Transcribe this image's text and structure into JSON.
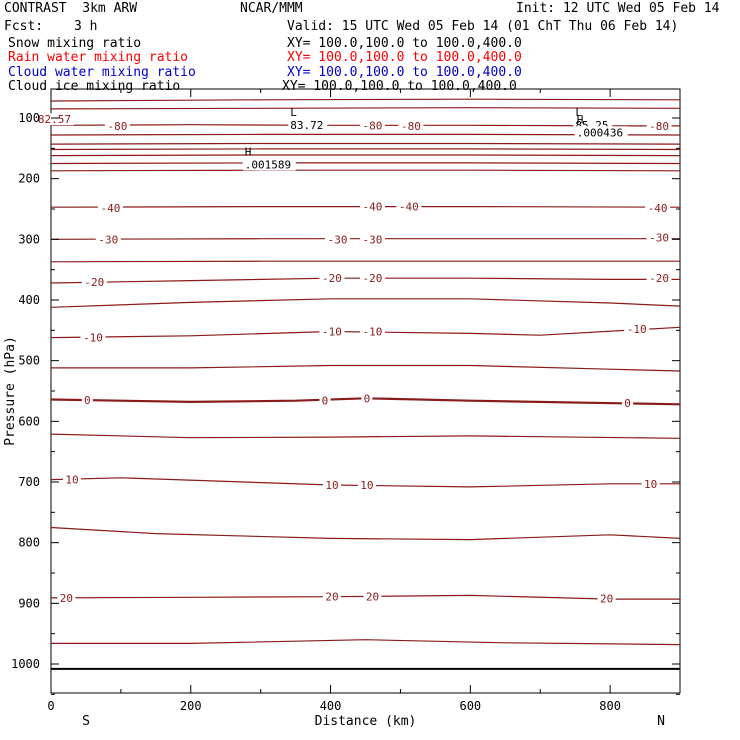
{
  "header": {
    "experiment": "CONTRAST  3km ARW",
    "forecast_label": "Fcst:",
    "forecast_value": "3 h",
    "center": "NCAR/MMM",
    "init": "Init: 12 UTC Wed 05 Feb 14",
    "valid": "Valid: 15 UTC Wed 05 Feb 14 (01 ChT Thu 06 Feb 14)"
  },
  "legend": [
    {
      "label": "Snow mixing ratio",
      "xy": "XY= 100.0,100.0 to 100.0,400.0",
      "color": "#000000"
    },
    {
      "label": "Rain water mixing ratio",
      "xy": "XY= 100.0,100.0 to 100.0,400.0",
      "color": "#ff0000"
    },
    {
      "label": "Cloud water mixing ratio",
      "xy": "XY= 100.0,100.0 to 100.0,400.0",
      "color": "#0000cc"
    },
    {
      "label": "Cloud ice mixing ratio",
      "xy": "XY= 100.0,100.0 to 100.0,400.0",
      "color": "#000000"
    }
  ],
  "chart_data": {
    "type": "contour",
    "xlabel": "Distance (km)",
    "ylabel": "Pressure (hPa)",
    "xlim": [
      0,
      900
    ],
    "ylim": [
      1050,
      62
    ],
    "x_ticks": [
      0,
      200,
      400,
      600,
      800
    ],
    "y_ticks": [
      100,
      200,
      300,
      400,
      500,
      600,
      700,
      800,
      900,
      1000
    ],
    "x_end_labels": {
      "left": "S",
      "right": "N"
    },
    "contour_color": "#8b1a1a",
    "surface_line_pressure": 1008,
    "extrema": [
      {
        "type": "L",
        "x": 348,
        "p": 100,
        "value": "83.72"
      },
      {
        "type": "H",
        "x": 283,
        "p": 165,
        "value": ".001589"
      },
      {
        "type": "L",
        "x": 756,
        "p": 100,
        "value": "85.25"
      },
      {
        "type": "H",
        "x": 758,
        "p": 112,
        "value": ".000436"
      }
    ],
    "isotherms": [
      {
        "label": "",
        "points": [
          [
            0,
            72
          ],
          [
            300,
            70
          ],
          [
            600,
            69
          ],
          [
            900,
            70
          ]
        ]
      },
      {
        "label": "",
        "points": [
          [
            0,
            85
          ],
          [
            300,
            84
          ],
          [
            600,
            83
          ],
          [
            900,
            84
          ]
        ]
      },
      {
        "label": "-80",
        "points": [
          [
            0,
            112
          ],
          [
            200,
            111
          ],
          [
            400,
            112
          ],
          [
            600,
            112
          ],
          [
            800,
            113
          ],
          [
            900,
            113
          ]
        ]
      },
      {
        "label": "",
        "points": [
          [
            0,
            128
          ],
          [
            300,
            127
          ],
          [
            600,
            127
          ],
          [
            900,
            128
          ]
        ]
      },
      {
        "label": "",
        "points": [
          [
            0,
            143
          ],
          [
            300,
            142
          ],
          [
            600,
            142
          ],
          [
            900,
            143
          ]
        ]
      },
      {
        "label": "",
        "points": [
          [
            0,
            152
          ],
          [
            300,
            151
          ],
          [
            600,
            151
          ],
          [
            900,
            152
          ]
        ]
      },
      {
        "label": "",
        "points": [
          [
            0,
            162
          ],
          [
            300,
            161
          ],
          [
            600,
            161
          ],
          [
            900,
            162
          ]
        ]
      },
      {
        "label": "",
        "points": [
          [
            0,
            175
          ],
          [
            300,
            174
          ],
          [
            600,
            174
          ],
          [
            900,
            175
          ]
        ]
      },
      {
        "label": "",
        "points": [
          [
            0,
            187
          ],
          [
            300,
            186
          ],
          [
            600,
            186
          ],
          [
            900,
            187
          ]
        ]
      },
      {
        "label": "-40",
        "points": [
          [
            0,
            247
          ],
          [
            300,
            246
          ],
          [
            600,
            246
          ],
          [
            900,
            247
          ]
        ]
      },
      {
        "label": "-30",
        "points": [
          [
            0,
            300
          ],
          [
            300,
            299
          ],
          [
            600,
            299
          ],
          [
            900,
            299
          ]
        ]
      },
      {
        "label": "",
        "points": [
          [
            0,
            337
          ],
          [
            300,
            336
          ],
          [
            600,
            336
          ],
          [
            900,
            336
          ]
        ]
      },
      {
        "label": "-20",
        "points": [
          [
            0,
            372
          ],
          [
            200,
            368
          ],
          [
            400,
            364
          ],
          [
            600,
            364
          ],
          [
            800,
            366
          ],
          [
            900,
            366
          ]
        ]
      },
      {
        "label": "",
        "points": [
          [
            0,
            412
          ],
          [
            200,
            404
          ],
          [
            400,
            398
          ],
          [
            600,
            398
          ],
          [
            800,
            405
          ],
          [
            900,
            410
          ]
        ]
      },
      {
        "label": "-10",
        "points": [
          [
            0,
            462
          ],
          [
            200,
            459
          ],
          [
            400,
            452
          ],
          [
            600,
            455
          ],
          [
            700,
            458
          ],
          [
            900,
            445
          ]
        ]
      },
      {
        "label": "",
        "points": [
          [
            0,
            512
          ],
          [
            200,
            512
          ],
          [
            400,
            508
          ],
          [
            600,
            508
          ],
          [
            800,
            514
          ],
          [
            900,
            517
          ]
        ]
      },
      {
        "label": "0",
        "points": [
          [
            0,
            564
          ],
          [
            200,
            568
          ],
          [
            350,
            566
          ],
          [
            450,
            562
          ],
          [
            600,
            566
          ],
          [
            900,
            572
          ]
        ]
      },
      {
        "label": "",
        "points": [
          [
            0,
            621
          ],
          [
            200,
            627
          ],
          [
            400,
            626
          ],
          [
            600,
            624
          ],
          [
            900,
            628
          ]
        ]
      },
      {
        "label": "10",
        "points": [
          [
            0,
            696
          ],
          [
            100,
            693
          ],
          [
            250,
            699
          ],
          [
            400,
            705
          ],
          [
            600,
            708
          ],
          [
            800,
            703
          ],
          [
            900,
            703
          ]
        ]
      },
      {
        "label": "",
        "points": [
          [
            0,
            775
          ],
          [
            150,
            785
          ],
          [
            400,
            793
          ],
          [
            600,
            795
          ],
          [
            800,
            787
          ],
          [
            900,
            793
          ]
        ]
      },
      {
        "label": "20",
        "points": [
          [
            0,
            891
          ],
          [
            200,
            890
          ],
          [
            400,
            889
          ],
          [
            600,
            887
          ],
          [
            800,
            893
          ],
          [
            900,
            893
          ]
        ]
      },
      {
        "label": "",
        "points": [
          [
            0,
            966
          ],
          [
            200,
            966
          ],
          [
            450,
            960
          ],
          [
            650,
            965
          ],
          [
            900,
            968
          ]
        ]
      }
    ],
    "contour_labels": [
      {
        "text": "82.57",
        "x": 5,
        "p": 102
      },
      {
        "text": "-80",
        "x": 95,
        "p": 113
      },
      {
        "text": "-80",
        "x": 460,
        "p": 112
      },
      {
        "text": "-80",
        "x": 515,
        "p": 113
      },
      {
        "text": "-80",
        "x": 870,
        "p": 113
      },
      {
        "text": "-40",
        "x": 85,
        "p": 248
      },
      {
        "text": "-40",
        "x": 460,
        "p": 246
      },
      {
        "text": "-40",
        "x": 512,
        "p": 246
      },
      {
        "text": "-40",
        "x": 868,
        "p": 248
      },
      {
        "text": "-30",
        "x": 82,
        "p": 300
      },
      {
        "text": "-30",
        "x": 410,
        "p": 300
      },
      {
        "text": "-30",
        "x": 460,
        "p": 300
      },
      {
        "text": "-30",
        "x": 870,
        "p": 297
      },
      {
        "text": "-20",
        "x": 62,
        "p": 370
      },
      {
        "text": "-20",
        "x": 402,
        "p": 364
      },
      {
        "text": "-20",
        "x": 460,
        "p": 364
      },
      {
        "text": "-20",
        "x": 870,
        "p": 364
      },
      {
        "text": "-10",
        "x": 60,
        "p": 462
      },
      {
        "text": "-10",
        "x": 402,
        "p": 452
      },
      {
        "text": "-10",
        "x": 460,
        "p": 452
      },
      {
        "text": "-10",
        "x": 838,
        "p": 448
      },
      {
        "text": "0",
        "x": 52,
        "p": 565
      },
      {
        "text": "0",
        "x": 392,
        "p": 566
      },
      {
        "text": "0",
        "x": 452,
        "p": 562
      },
      {
        "text": "0",
        "x": 825,
        "p": 570
      },
      {
        "text": "10",
        "x": 30,
        "p": 696
      },
      {
        "text": "10",
        "x": 402,
        "p": 705
      },
      {
        "text": "10",
        "x": 452,
        "p": 705
      },
      {
        "text": "10",
        "x": 858,
        "p": 703
      },
      {
        "text": "20",
        "x": 22,
        "p": 891
      },
      {
        "text": "20",
        "x": 402,
        "p": 889
      },
      {
        "text": "20",
        "x": 460,
        "p": 889
      },
      {
        "text": "20",
        "x": 795,
        "p": 892
      }
    ]
  }
}
